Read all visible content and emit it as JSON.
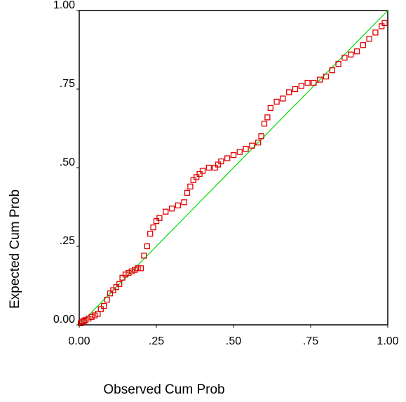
{
  "chart_data": {
    "type": "scatter",
    "x_label": "Observed Cum Prob",
    "y_label": "Expected Cum Prob",
    "xlim": [
      0,
      1
    ],
    "ylim": [
      0,
      1
    ],
    "xticks": [
      {
        "value": 0,
        "label": "0.00"
      },
      {
        "value": 0.25,
        "label": ".25"
      },
      {
        "value": 0.5,
        "label": ".50"
      },
      {
        "value": 0.75,
        "label": ".75"
      },
      {
        "value": 1,
        "label": "1.00"
      }
    ],
    "yticks": [
      {
        "value": 0,
        "label": "0.00"
      },
      {
        "value": 0.25,
        "label": ".25"
      },
      {
        "value": 0.5,
        "label": ".50"
      },
      {
        "value": 0.75,
        "label": ".75"
      },
      {
        "value": 1,
        "label": "1.00"
      }
    ],
    "reference_line_color": "#00dd00",
    "color": "#e00000",
    "x": [
      0.005,
      0.01,
      0.015,
      0.02,
      0.03,
      0.04,
      0.05,
      0.06,
      0.07,
      0.08,
      0.09,
      0.1,
      0.11,
      0.12,
      0.13,
      0.14,
      0.15,
      0.16,
      0.17,
      0.18,
      0.19,
      0.2,
      0.21,
      0.22,
      0.23,
      0.24,
      0.25,
      0.26,
      0.28,
      0.3,
      0.32,
      0.34,
      0.35,
      0.36,
      0.37,
      0.38,
      0.39,
      0.4,
      0.42,
      0.44,
      0.45,
      0.46,
      0.48,
      0.5,
      0.52,
      0.54,
      0.56,
      0.58,
      0.59,
      0.6,
      0.61,
      0.62,
      0.64,
      0.66,
      0.68,
      0.7,
      0.72,
      0.74,
      0.76,
      0.78,
      0.8,
      0.82,
      0.84,
      0.86,
      0.88,
      0.9,
      0.92,
      0.94,
      0.96,
      0.98,
      0.99
    ],
    "values": [
      0.005,
      0.01,
      0.012,
      0.015,
      0.02,
      0.025,
      0.03,
      0.035,
      0.05,
      0.06,
      0.08,
      0.1,
      0.11,
      0.12,
      0.13,
      0.15,
      0.16,
      0.165,
      0.17,
      0.175,
      0.18,
      0.18,
      0.22,
      0.25,
      0.29,
      0.31,
      0.33,
      0.34,
      0.36,
      0.37,
      0.38,
      0.39,
      0.42,
      0.44,
      0.46,
      0.47,
      0.48,
      0.49,
      0.5,
      0.5,
      0.51,
      0.52,
      0.53,
      0.54,
      0.55,
      0.56,
      0.57,
      0.58,
      0.6,
      0.64,
      0.66,
      0.69,
      0.71,
      0.72,
      0.74,
      0.75,
      0.76,
      0.77,
      0.77,
      0.78,
      0.79,
      0.81,
      0.83,
      0.85,
      0.86,
      0.87,
      0.89,
      0.91,
      0.93,
      0.95,
      0.96
    ]
  }
}
